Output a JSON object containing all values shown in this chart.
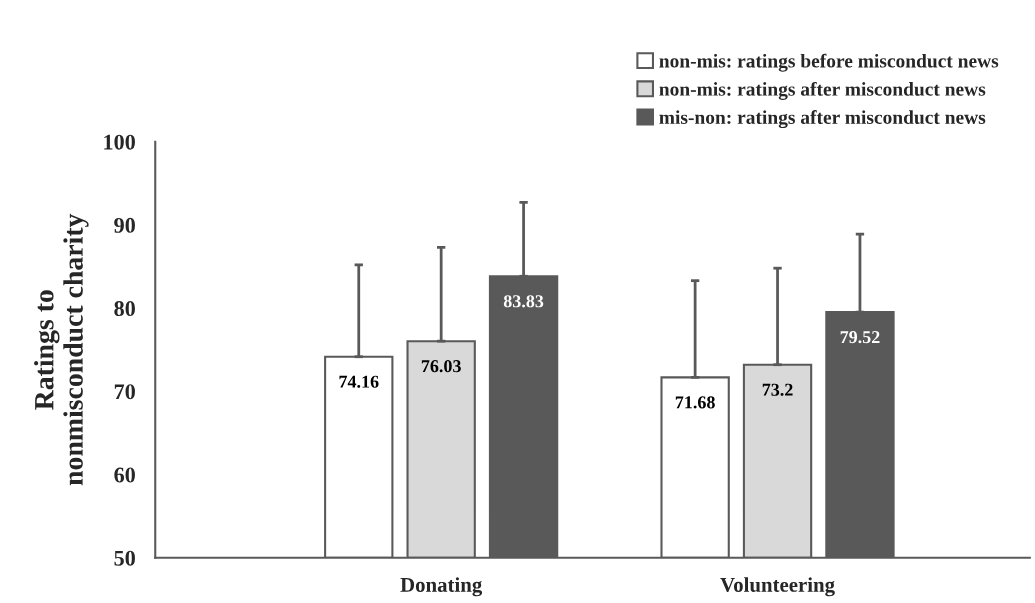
{
  "chart_data": {
    "type": "bar",
    "ylabel": "Ratings to\nnonmisconduct charity",
    "categories": [
      "Donating",
      "Volunteering"
    ],
    "series": [
      {
        "name": "non-mis: ratings before misconduct news",
        "color": "#ffffff",
        "values": [
          74.16,
          71.68
        ],
        "errors": [
          [
            74.16,
            85.2
          ],
          [
            71.68,
            83.3
          ]
        ]
      },
      {
        "name": "non-mis: ratings after misconduct news",
        "color": "#d9d9d9",
        "values": [
          76.03,
          73.2
        ],
        "errors": [
          [
            76.03,
            87.3
          ],
          [
            73.2,
            84.8
          ]
        ]
      },
      {
        "name": "mis-non: ratings after misconduct news",
        "color": "#595959",
        "values": [
          83.83,
          79.52
        ],
        "errors": [
          [
            83.83,
            92.7
          ],
          [
            79.52,
            88.9
          ]
        ]
      }
    ],
    "ylim": [
      50,
      100
    ],
    "yticks": [
      50,
      60,
      70,
      80,
      90,
      100
    ],
    "data_labels": true,
    "legend": "top right",
    "grid": false
  }
}
